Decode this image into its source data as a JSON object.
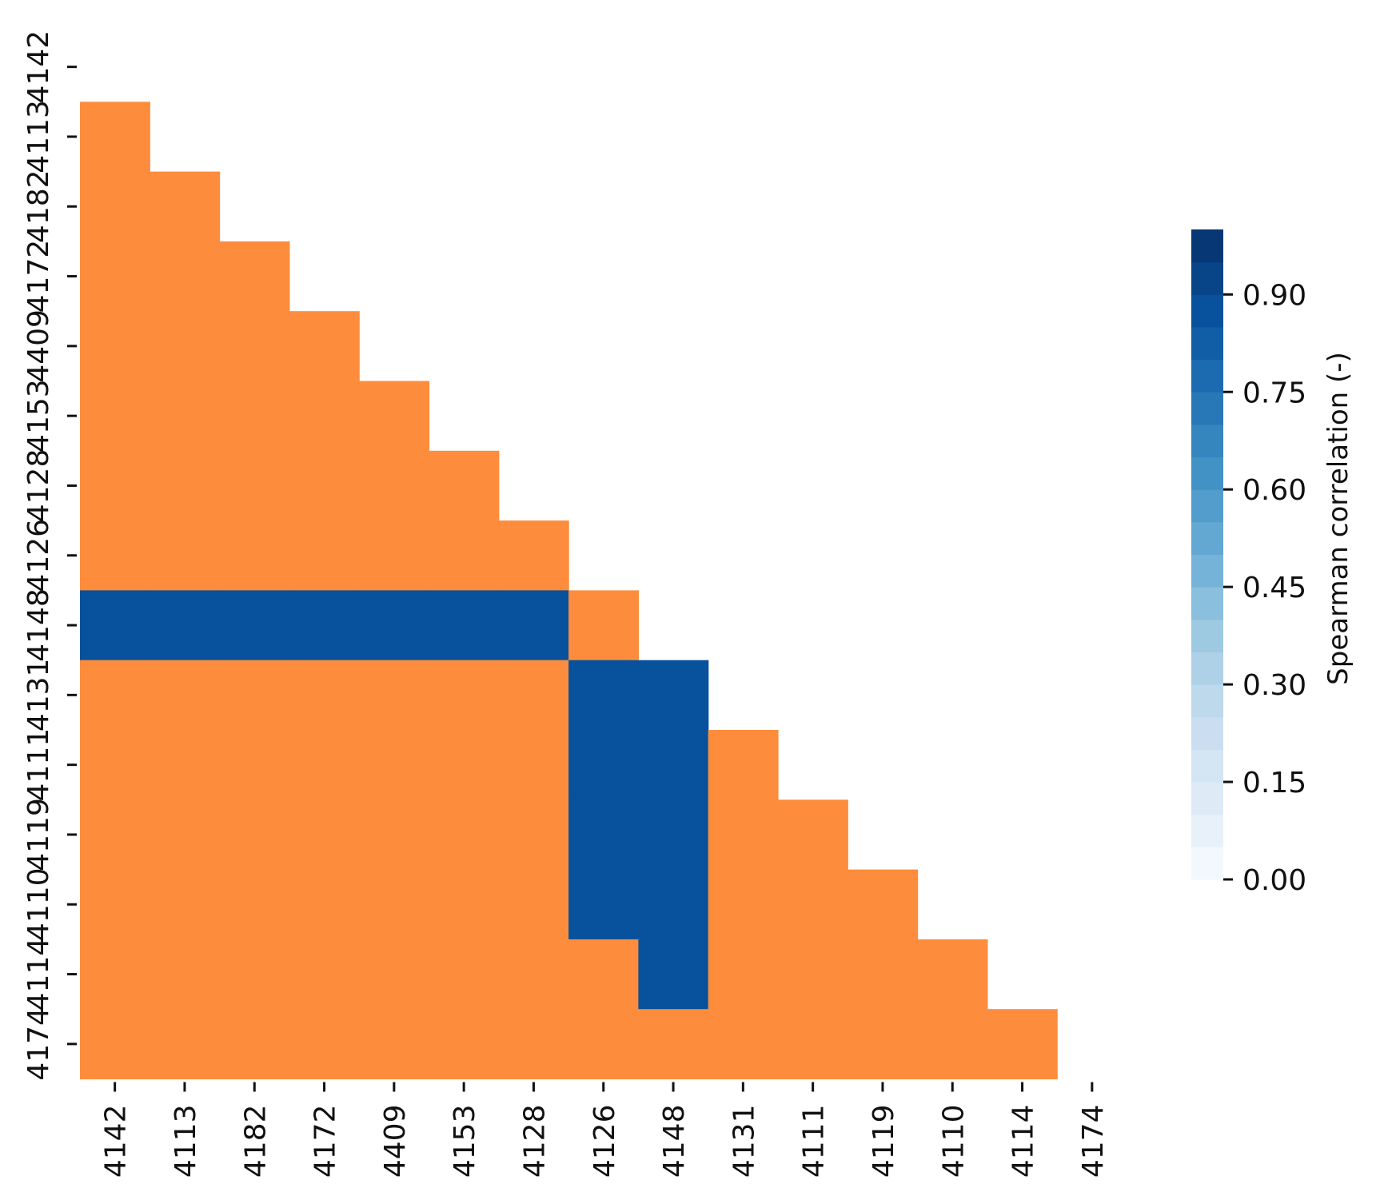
{
  "chart_data": {
    "type": "heatmap",
    "row_labels": [
      "4142",
      "4113",
      "4182",
      "4172",
      "4409",
      "4153",
      "4128",
      "4126",
      "4148",
      "4131",
      "4111",
      "4119",
      "4110",
      "4114",
      "4174"
    ],
    "col_labels": [
      "4142",
      "4113",
      "4182",
      "4172",
      "4409",
      "4153",
      "4128",
      "4126",
      "4148",
      "4131",
      "4111",
      "4119",
      "4110",
      "4114",
      "4174"
    ],
    "mask": "upper-triangle-including-diagonal",
    "cell_categories": {
      "description_of_encoding": "values give the colour class per lower-triangle cell, row-major",
      "rows": [
        [],
        [
          "orange"
        ],
        [
          "orange",
          "orange"
        ],
        [
          "orange",
          "orange",
          "orange"
        ],
        [
          "orange",
          "orange",
          "orange",
          "orange"
        ],
        [
          "orange",
          "orange",
          "orange",
          "orange",
          "orange"
        ],
        [
          "orange",
          "orange",
          "orange",
          "orange",
          "orange",
          "orange"
        ],
        [
          "orange",
          "orange",
          "orange",
          "orange",
          "orange",
          "orange",
          "orange"
        ],
        [
          "blue",
          "blue",
          "blue",
          "blue",
          "blue",
          "blue",
          "blue",
          "orange"
        ],
        [
          "orange",
          "orange",
          "orange",
          "orange",
          "orange",
          "orange",
          "orange",
          "blue",
          "blue"
        ],
        [
          "orange",
          "orange",
          "orange",
          "orange",
          "orange",
          "orange",
          "orange",
          "blue",
          "blue",
          "orange"
        ],
        [
          "orange",
          "orange",
          "orange",
          "orange",
          "orange",
          "orange",
          "orange",
          "blue",
          "blue",
          "orange",
          "orange"
        ],
        [
          "orange",
          "orange",
          "orange",
          "orange",
          "orange",
          "orange",
          "orange",
          "blue",
          "blue",
          "orange",
          "orange",
          "orange"
        ],
        [
          "orange",
          "orange",
          "orange",
          "orange",
          "orange",
          "orange",
          "orange",
          "orange",
          "blue",
          "orange",
          "orange",
          "orange",
          "orange"
        ],
        [
          "orange",
          "orange",
          "orange",
          "orange",
          "orange",
          "orange",
          "orange",
          "orange",
          "orange",
          "orange",
          "orange",
          "orange",
          "orange",
          "orange"
        ]
      ]
    },
    "colorbar": {
      "label": "Spearman correlation (-)",
      "ticks": [
        "0.00",
        "0.15",
        "0.30",
        "0.45",
        "0.60",
        "0.75",
        "0.90"
      ],
      "tick_values": [
        0.0,
        0.15,
        0.3,
        0.45,
        0.6,
        0.75,
        0.9
      ],
      "range": [
        0.0,
        1.0
      ],
      "steps": 20,
      "colormap": "Blues"
    },
    "colors": {
      "orange": "#fd8d3c",
      "blue": "#08519c"
    }
  }
}
